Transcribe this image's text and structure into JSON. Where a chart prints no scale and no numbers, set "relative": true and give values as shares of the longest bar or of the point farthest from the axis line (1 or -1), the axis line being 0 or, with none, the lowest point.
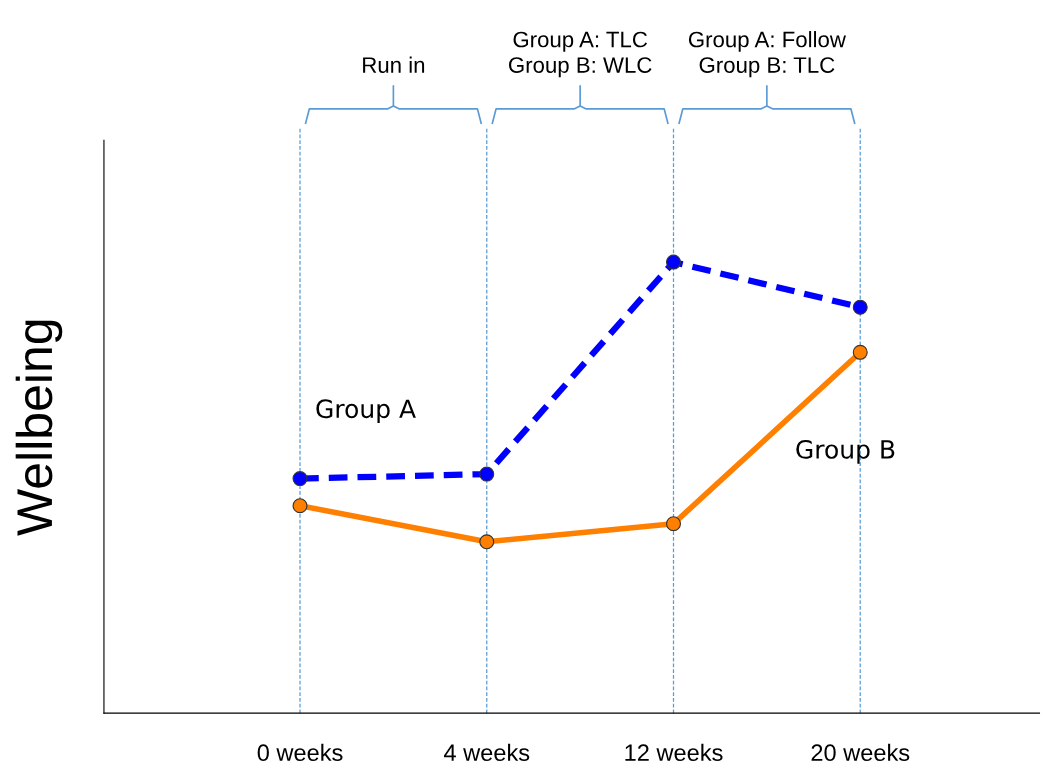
{
  "chart_data": {
    "type": "line",
    "relative": true,
    "ylabel": "Wellbeing",
    "categories": [
      "0 weeks",
      "4 weeks",
      "12 weeks",
      "20 weeks"
    ],
    "series": [
      {
        "name": "Group A",
        "color": "#0000ff",
        "line_style": "dashed",
        "values": [
          0.52,
          0.53,
          1,
          0.9
        ]
      },
      {
        "name": "Group B",
        "color": "#ff8000",
        "line_style": "solid",
        "values": [
          0.46,
          0.38,
          0.42,
          0.8
        ]
      }
    ],
    "marker": "circle",
    "ref_lines": [
      {
        "axis": "x",
        "value": "0 weeks",
        "color": "#5b9bd5",
        "line_style": "dashed"
      },
      {
        "axis": "x",
        "value": "4 weeks",
        "color": "#5b9bd5",
        "line_style": "dashed"
      },
      {
        "axis": "x",
        "value": "12 weeks",
        "color": "#5b9bd5",
        "line_style": "dashed"
      },
      {
        "axis": "x",
        "value": "20 weeks",
        "color": "#5b9bd5",
        "line_style": "dashed"
      }
    ],
    "annotations": [
      "Run in",
      "Group A: TLC\nGroup B: WLC",
      "Group A: Follow\nGroup B: TLC"
    ],
    "tick_labels": "x",
    "grid": false,
    "legend": false
  }
}
